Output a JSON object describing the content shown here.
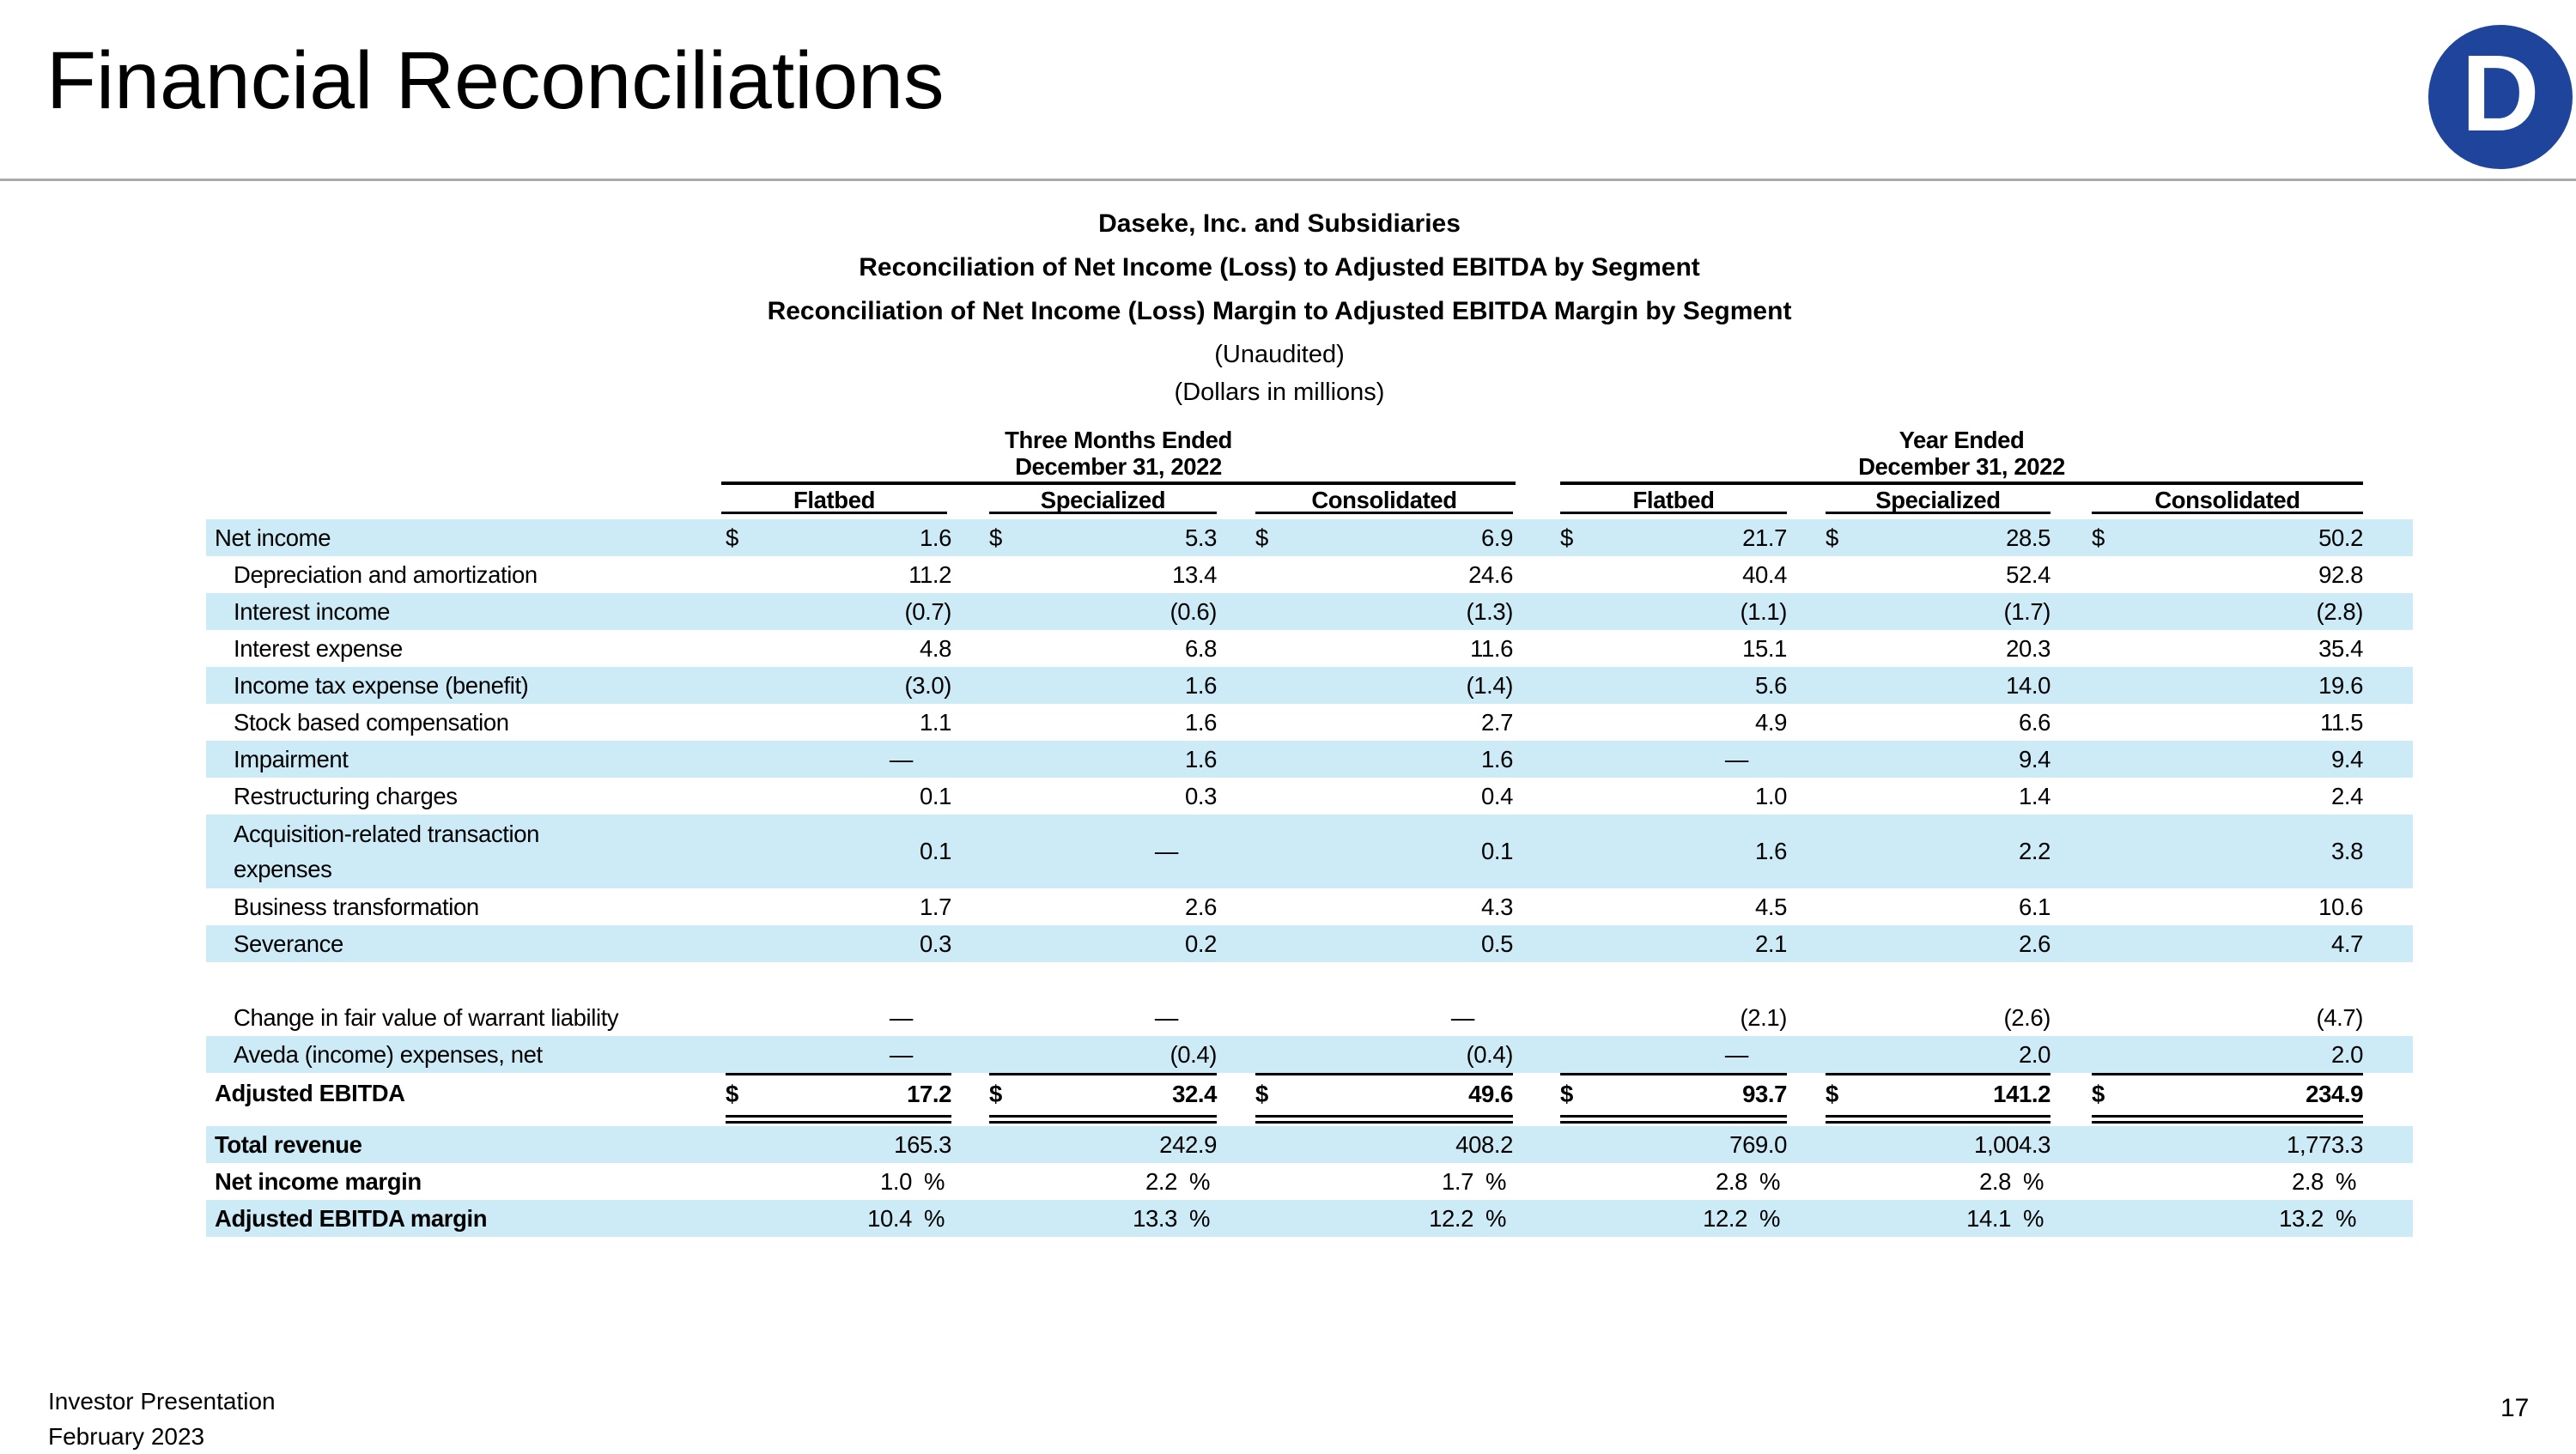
{
  "page": {
    "title": "Financial Reconciliations",
    "page_number": "17",
    "footer_line1": "Investor Presentation",
    "footer_line2": "February 2023"
  },
  "logo": {
    "letter": "D",
    "registered_mark": "®"
  },
  "colors": {
    "stripe_blue": "#CDEAF7",
    "logo_blue": "#1E459B",
    "title_rule_gray": "#A9A9A9"
  },
  "table": {
    "titles": [
      "Daseke, Inc. and Subsidiaries",
      "Reconciliation of Net Income (Loss) to Adjusted EBITDA by Segment",
      "Reconciliation of Net Income (Loss) Margin to Adjusted EBITDA Margin by Segment",
      "(Unaudited)",
      "(Dollars in millions)"
    ],
    "groups": [
      {
        "label": "Three Months Ended",
        "date": "December 31, 2022"
      },
      {
        "label": "Year Ended",
        "date": "December 31, 2022"
      }
    ],
    "columns": [
      "Flatbed",
      "Specialized",
      "Consolidated",
      "Flatbed",
      "Specialized",
      "Consolidated"
    ],
    "currency_symbol": "$",
    "percent_symbol": "%",
    "rows": [
      {
        "label": "Net income",
        "indent": 0,
        "stripe": true,
        "dollar": true,
        "values": [
          "1.6",
          "5.3",
          "6.9",
          "21.7",
          "28.5",
          "50.2"
        ]
      },
      {
        "label": "Depreciation and amortization",
        "indent": 1,
        "stripe": false,
        "values": [
          "11.2",
          "13.4",
          "24.6",
          "40.4",
          "52.4",
          "92.8"
        ]
      },
      {
        "label": "Interest income",
        "indent": 1,
        "stripe": true,
        "values": [
          "(0.7)",
          "(0.6)",
          "(1.3)",
          "(1.1)",
          "(1.7)",
          "(2.8)"
        ]
      },
      {
        "label": "Interest expense",
        "indent": 1,
        "stripe": false,
        "values": [
          "4.8",
          "6.8",
          "11.6",
          "15.1",
          "20.3",
          "35.4"
        ]
      },
      {
        "label": "Income tax expense (benefit)",
        "indent": 1,
        "stripe": true,
        "values": [
          "(3.0)",
          "1.6",
          "(1.4)",
          "5.6",
          "14.0",
          "19.6"
        ]
      },
      {
        "label": "Stock based compensation",
        "indent": 1,
        "stripe": false,
        "values": [
          "1.1",
          "1.6",
          "2.7",
          "4.9",
          "6.6",
          "11.5"
        ]
      },
      {
        "label": "Impairment",
        "indent": 1,
        "stripe": true,
        "values": [
          "—",
          "1.6",
          "1.6",
          "—",
          "9.4",
          "9.4"
        ]
      },
      {
        "label": "Restructuring charges",
        "indent": 1,
        "stripe": false,
        "values": [
          "0.1",
          "0.3",
          "0.4",
          "1.0",
          "1.4",
          "2.4"
        ]
      },
      {
        "label": "Acquisition-related transaction",
        "label2": "expenses",
        "indent": 1,
        "stripe": true,
        "tall": true,
        "values": [
          "0.1",
          "—",
          "0.1",
          "1.6",
          "2.2",
          "3.8"
        ]
      },
      {
        "label": "Business transformation",
        "indent": 1,
        "stripe": false,
        "values": [
          "1.7",
          "2.6",
          "4.3",
          "4.5",
          "6.1",
          "10.6"
        ]
      },
      {
        "label": "Severance",
        "indent": 1,
        "stripe": true,
        "values": [
          "0.3",
          "0.2",
          "0.5",
          "2.1",
          "2.6",
          "4.7"
        ]
      },
      {
        "spacer": true
      },
      {
        "label": "Change in fair value of warrant liability",
        "indent": 1,
        "stripe": false,
        "values": [
          "—",
          "—",
          "—",
          "(2.1)",
          "(2.6)",
          "(4.7)"
        ]
      },
      {
        "label": "Aveda (income) expenses, net",
        "indent": 1,
        "stripe": true,
        "values": [
          "—",
          "(0.4)",
          "(0.4)",
          "—",
          "2.0",
          "2.0"
        ]
      },
      {
        "label": "Adjusted EBITDA",
        "indent": 0,
        "stripe": false,
        "dollar": true,
        "bold_label": true,
        "bold_values": true,
        "topline": true,
        "double_underline": true,
        "values": [
          "17.2",
          "32.4",
          "49.6",
          "93.7",
          "141.2",
          "234.9"
        ]
      },
      {
        "label": "Total revenue",
        "indent": 0,
        "stripe": true,
        "bold_label": true,
        "values": [
          "165.3",
          "242.9",
          "408.2",
          "769.0",
          "1,004.3",
          "1,773.3"
        ]
      },
      {
        "label": "Net income margin",
        "indent": 0,
        "stripe": false,
        "bold_label": true,
        "pct": true,
        "values": [
          "1.0",
          "2.2",
          "1.7",
          "2.8",
          "2.8",
          "2.8"
        ]
      },
      {
        "label": "Adjusted EBITDA margin",
        "indent": 0,
        "stripe": true,
        "bold_label": true,
        "pct": true,
        "values": [
          "10.4",
          "13.3",
          "12.2",
          "12.2",
          "14.1",
          "13.2"
        ]
      }
    ]
  }
}
